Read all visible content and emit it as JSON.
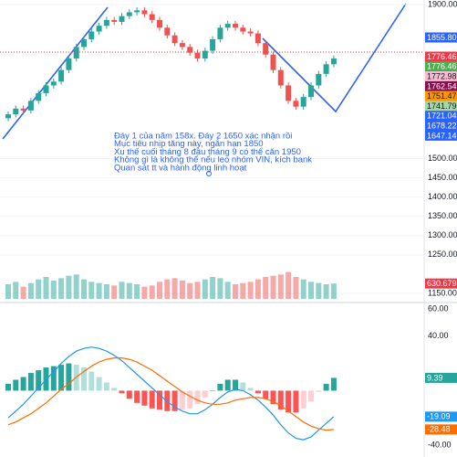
{
  "chart_data": [
    {
      "type": "candlestick",
      "annotation": [
        "Đáy 1 của năm 158x. Đáy 2 1650 xác nhận rồi",
        "Mục tiêu nhịp tăng này, ngắn hạn 1850",
        "Xu thế cuối tháng 8 đầu tháng 9 có thể căn 1950",
        "Không gì là không thể nếu leo nhóm VIN, kích bank",
        "Quan sát tt và hành động linh hoạt"
      ],
      "open": [
        1605,
        1615,
        1630,
        1625,
        1650,
        1670,
        1690,
        1700,
        1730,
        1760,
        1790,
        1810,
        1830,
        1845,
        1860,
        1855,
        1870,
        1880,
        1885,
        1875,
        1860,
        1840,
        1820,
        1800,
        1790,
        1775,
        1760,
        1780,
        1810,
        1840,
        1850,
        1840,
        1830,
        1825,
        1800,
        1770,
        1730,
        1690,
        1650,
        1635,
        1660,
        1690,
        1720,
        1745
      ],
      "high": [
        1623,
        1638,
        1638,
        1658,
        1678,
        1698,
        1708,
        1738,
        1768,
        1798,
        1818,
        1838,
        1853,
        1868,
        1868,
        1878,
        1888,
        1893,
        1893,
        1883,
        1868,
        1848,
        1828,
        1808,
        1798,
        1783,
        1788,
        1818,
        1848,
        1858,
        1858,
        1848,
        1838,
        1833,
        1808,
        1778,
        1738,
        1698,
        1658,
        1668,
        1698,
        1728,
        1753,
        1768
      ],
      "low": [
        1597,
        1607,
        1617,
        1617,
        1642,
        1662,
        1682,
        1692,
        1722,
        1752,
        1782,
        1802,
        1822,
        1837,
        1847,
        1847,
        1862,
        1872,
        1867,
        1852,
        1832,
        1812,
        1792,
        1782,
        1767,
        1752,
        1752,
        1772,
        1802,
        1832,
        1832,
        1822,
        1817,
        1792,
        1762,
        1722,
        1682,
        1642,
        1627,
        1627,
        1652,
        1682,
        1712,
        1737
      ],
      "close": [
        1615,
        1630,
        1625,
        1650,
        1670,
        1690,
        1700,
        1730,
        1760,
        1790,
        1810,
        1830,
        1845,
        1860,
        1855,
        1870,
        1880,
        1885,
        1875,
        1860,
        1840,
        1820,
        1800,
        1790,
        1775,
        1760,
        1780,
        1810,
        1840,
        1850,
        1840,
        1830,
        1825,
        1800,
        1770,
        1730,
        1690,
        1650,
        1635,
        1660,
        1690,
        1720,
        1745,
        1760
      ],
      "up_color": "#26a69a",
      "down_color": "#ef5350",
      "ylim": [
        1150,
        1900
      ],
      "yticks": [
        {
          "value": 1900,
          "label": "1900.00"
        },
        {
          "value": 1500,
          "label": "1500.00"
        },
        {
          "value": 1450,
          "label": "1450.00"
        },
        {
          "value": 1400,
          "label": "1400.00"
        },
        {
          "value": 1350,
          "label": "1350.00"
        },
        {
          "value": 1300,
          "label": "1300.00"
        },
        {
          "value": 1250,
          "label": "1250.00"
        },
        {
          "value": 1150,
          "label": "1150.00"
        }
      ],
      "grid": true,
      "tags": [
        {
          "value": 1855.8,
          "label": "1855.80",
          "color": "#2962ff"
        },
        {
          "value": 1776.46,
          "color": "#f23645"
        },
        {
          "value": 1776.46,
          "color": "#4caf50"
        },
        {
          "value": 1772.98,
          "color": "#f8bbd0"
        },
        {
          "value": 1762.54,
          "color": "#880e4f"
        },
        {
          "value": 1751.47,
          "color": "#ff9800"
        },
        {
          "value": 1741.79,
          "color": "#a5d6a7"
        },
        {
          "value": 1721.04,
          "color": "#2962ff"
        },
        {
          "value": 1678.22,
          "color": "#2962ff"
        },
        {
          "value": 1647.14,
          "color": "#2962ff"
        }
      ]
    },
    {
      "type": "bar",
      "values": [
        600,
        700,
        500,
        650,
        800,
        900,
        750,
        850,
        950,
        1000,
        800,
        700,
        650,
        600,
        550,
        700,
        650,
        600,
        500,
        550,
        700,
        800,
        850,
        750,
        650,
        700,
        800,
        900,
        850,
        700,
        600,
        650,
        700,
        800,
        900,
        950,
        1000,
        1100,
        900,
        800,
        700,
        650,
        600,
        630.679
      ],
      "value_labels": [
        null,
        null,
        null,
        null,
        null,
        null,
        null,
        null,
        null,
        null,
        null,
        null,
        null,
        null,
        null,
        null,
        null,
        null,
        null,
        null,
        null,
        null,
        null,
        null,
        null,
        null,
        null,
        null,
        null,
        null,
        null,
        null,
        null,
        null,
        null,
        null,
        null,
        null,
        null,
        null,
        null,
        null,
        null,
        "630.679M"
      ],
      "ylim": [
        0,
        1500
      ],
      "color": "#f23645"
    },
    {
      "type": "macd",
      "ylim": [
        -42,
        62
      ],
      "yticks": [
        {
          "value": 60,
          "label": "60.00"
        },
        {
          "value": 40,
          "label": "40.00"
        },
        {
          "value": -40,
          "label": "-40.00"
        }
      ],
      "series": [
        {
          "color": "#2196f3",
          "values": [
            -20,
            -15,
            -10,
            -4,
            2,
            8,
            14,
            20,
            25,
            29,
            31,
            32,
            31,
            29,
            26,
            22,
            17,
            12,
            7,
            2,
            -3,
            -8,
            -12,
            -15,
            -17,
            -17,
            -14,
            -10,
            -5,
            -1,
            1,
            0,
            -3,
            -7,
            -12,
            -18,
            -25,
            -31,
            -35,
            -36,
            -34,
            -29,
            -24,
            -19.09
          ]
        },
        {
          "color": "#ff6d00",
          "values": [
            -25,
            -23,
            -20,
            -17,
            -13,
            -9,
            -4,
            1,
            5,
            10,
            14,
            18,
            21,
            23,
            24,
            24,
            23,
            21,
            18,
            15,
            11,
            7,
            3,
            -1,
            -4,
            -7,
            -9,
            -10,
            -10,
            -9,
            -7,
            -6,
            -5,
            -5,
            -6,
            -8,
            -11,
            -15,
            -19,
            -23,
            -26,
            -28,
            -29,
            -28.48
          ]
        }
      ],
      "histogram": {
        "values": [
          5,
          8,
          10,
          13,
          15,
          17,
          18,
          19,
          20,
          19,
          17,
          14,
          10,
          6,
          2,
          -2,
          -6,
          -9,
          -11,
          -13,
          -14,
          -15,
          -15,
          -14,
          -13,
          -10,
          -5,
          0,
          5,
          8,
          8,
          6,
          2,
          -2,
          -6,
          -10,
          -14,
          -16,
          -16,
          -13,
          -8,
          -1,
          5,
          9.39
        ],
        "colors": [
          "#26a69a",
          "#b2dfdb",
          "#ff5252",
          "#ffcdd2"
        ]
      }
    }
  ]
}
